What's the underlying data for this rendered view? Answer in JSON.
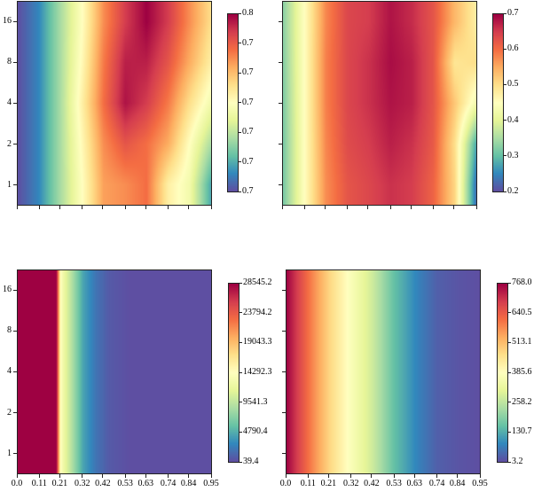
{
  "chart_data": [
    {
      "type": "heatmap",
      "panel": "top-left",
      "x": [
        0,
        0.105,
        0.211,
        0.317,
        0.422,
        0.528,
        0.633,
        0.739,
        0.844,
        0.95
      ],
      "y": [
        1,
        2,
        4,
        8,
        16
      ],
      "z_normalized": [
        [
          0,
          0.1,
          0.3,
          0.5,
          0.72,
          0.75,
          0.8,
          0.55,
          0.45,
          0.15
        ],
        [
          0,
          0.1,
          0.3,
          0.52,
          0.75,
          0.85,
          0.8,
          0.7,
          0.5,
          0.3
        ],
        [
          0,
          0.1,
          0.3,
          0.55,
          0.8,
          0.97,
          0.9,
          0.78,
          0.6,
          0.45
        ],
        [
          0,
          0.1,
          0.3,
          0.52,
          0.78,
          0.95,
          0.95,
          0.85,
          0.7,
          0.55
        ],
        [
          0,
          0.1,
          0.3,
          0.5,
          0.75,
          0.9,
          1.0,
          0.9,
          0.75,
          0.6
        ]
      ],
      "xlim": [
        0,
        0.95
      ],
      "ylim": [
        0.707,
        22.6
      ],
      "yscale": "log2",
      "xticks": [
        0,
        0.11,
        0.21,
        0.32,
        0.42,
        0.53,
        0.63,
        0.74,
        0.84,
        0.95
      ],
      "show_xticklabels": false,
      "yticks": [
        1,
        2,
        4,
        8,
        16
      ],
      "yticklabels": [
        "1",
        "2",
        "4",
        "8",
        "16"
      ],
      "show_yticklabels": true,
      "colormap": "Spectral_r",
      "colorbar_ticks": [
        "0.8",
        "0.7",
        "0.7",
        "0.7",
        "0.7",
        "0.7",
        "0.7"
      ]
    },
    {
      "type": "heatmap",
      "panel": "top-right",
      "x": [
        0,
        0.105,
        0.211,
        0.317,
        0.422,
        0.528,
        0.633,
        0.739,
        0.844,
        0.95
      ],
      "y": [
        1,
        2,
        4,
        8,
        16
      ],
      "z_normalized": [
        [
          0.22,
          0.5,
          0.75,
          0.85,
          0.88,
          0.92,
          0.9,
          0.82,
          0.62,
          0.05
        ],
        [
          0.22,
          0.5,
          0.76,
          0.87,
          0.9,
          0.95,
          0.92,
          0.84,
          0.6,
          0.15
        ],
        [
          0.23,
          0.5,
          0.77,
          0.88,
          0.92,
          0.97,
          0.95,
          0.85,
          0.65,
          0.45
        ],
        [
          0.24,
          0.5,
          0.77,
          0.88,
          0.92,
          0.98,
          0.95,
          0.85,
          0.58,
          0.6
        ],
        [
          0.25,
          0.5,
          0.76,
          0.88,
          0.9,
          0.97,
          0.93,
          0.85,
          0.68,
          0.55
        ]
      ],
      "xlim": [
        0,
        0.95
      ],
      "ylim": [
        0.707,
        22.6
      ],
      "yscale": "log2",
      "xticks": [
        0,
        0.11,
        0.21,
        0.32,
        0.42,
        0.53,
        0.63,
        0.74,
        0.84,
        0.95
      ],
      "show_xticklabels": false,
      "yticks": [
        1,
        2,
        4,
        8,
        16
      ],
      "show_yticklabels": false,
      "colormap": "Spectral_r",
      "colorbar_ticks": [
        "0.7",
        "0.6",
        "0.5",
        "0.4",
        "0.3",
        "0.2"
      ]
    },
    {
      "type": "heatmap",
      "panel": "bottom-left",
      "x": [
        0,
        0.19,
        0.2,
        0.21,
        0.23,
        0.27,
        0.32,
        0.38,
        0.45,
        0.55,
        0.95
      ],
      "y": [
        1,
        16
      ],
      "z_normalized": [
        [
          1,
          1,
          0.75,
          0.5,
          0.42,
          0.3,
          0.15,
          0.07,
          0.02,
          0,
          0
        ],
        [
          1,
          1,
          0.75,
          0.5,
          0.42,
          0.3,
          0.15,
          0.07,
          0.02,
          0,
          0
        ]
      ],
      "vmin": 39.4,
      "vmax": 28545.2,
      "xlim": [
        0,
        0.95
      ],
      "ylim": [
        0.707,
        22.6
      ],
      "yscale": "log2",
      "xticks": [
        0,
        0.11,
        0.21,
        0.32,
        0.42,
        0.53,
        0.63,
        0.74,
        0.84,
        0.95
      ],
      "xticklabels": [
        "0.0",
        "0.11",
        "0.21",
        "0.32",
        "0.42",
        "0.53",
        "0.63",
        "0.74",
        "0.84",
        "0.95"
      ],
      "show_xticklabels": true,
      "yticks": [
        1,
        2,
        4,
        8,
        16
      ],
      "yticklabels": [
        "1",
        "2",
        "4",
        "8",
        "16"
      ],
      "show_yticklabels": true,
      "colormap": "Spectral_r",
      "colorbar_ticks": [
        "28545.2",
        "23794.2",
        "19043.3",
        "14292.3",
        "9541.3",
        "4790.4",
        "39.4"
      ]
    },
    {
      "type": "heatmap",
      "panel": "bottom-right",
      "x": [
        0,
        0.105,
        0.211,
        0.3,
        0.422,
        0.528,
        0.633,
        0.739,
        0.844,
        0.95
      ],
      "y": [
        1,
        16
      ],
      "z_normalized": [
        [
          1,
          0.8,
          0.62,
          0.5,
          0.36,
          0.2,
          0.1,
          0.03,
          0.01,
          0
        ],
        [
          1,
          0.8,
          0.62,
          0.5,
          0.36,
          0.2,
          0.1,
          0.03,
          0.01,
          0
        ]
      ],
      "vmin": 3.2,
      "vmax": 768.0,
      "xlim": [
        0,
        0.95
      ],
      "ylim": [
        0.707,
        22.6
      ],
      "yscale": "log2",
      "xticks": [
        0,
        0.11,
        0.21,
        0.32,
        0.42,
        0.53,
        0.63,
        0.74,
        0.84,
        0.95
      ],
      "xticklabels": [
        "0.0",
        "0.11",
        "0.21",
        "0.32",
        "0.42",
        "0.53",
        "0.63",
        "0.74",
        "0.84",
        "0.95"
      ],
      "show_xticklabels": true,
      "yticks": [
        1,
        2,
        4,
        8,
        16
      ],
      "show_yticklabels": false,
      "colormap": "Spectral_r",
      "colorbar_ticks": [
        "768.0",
        "640.5",
        "513.1",
        "385.6",
        "258.2",
        "130.7",
        "3.2"
      ]
    }
  ],
  "colormap_stops": [
    "#5e4fa2",
    "#3288bd",
    "#66c2a5",
    "#abdda4",
    "#e6f598",
    "#ffffbf",
    "#fee08b",
    "#fdae61",
    "#f46d43",
    "#d53e4f",
    "#9e0142"
  ]
}
